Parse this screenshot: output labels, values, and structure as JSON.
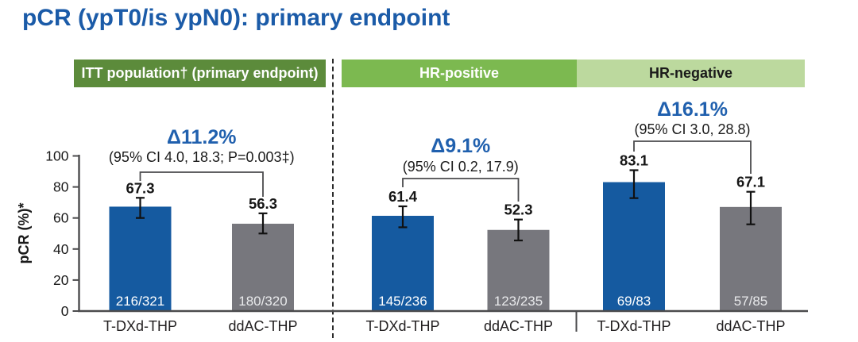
{
  "colors": {
    "title_blue": "#1b5ba8",
    "accent_blue": "#2060ae",
    "bar_blue": "#155aa0",
    "bar_gray": "#77777d",
    "header_dark_green": "#5c8b3b",
    "header_mid_green": "#7cb950",
    "header_light_green": "#bcd99e",
    "header_text_light": "#ffffff",
    "header_text_dark": "#1a1a1a",
    "axis": "#4b4b4d",
    "error_bar": "#111111",
    "fraction_on_blue": "#ffffff",
    "fraction_on_gray": "#e9eaec"
  },
  "chart_data": {
    "type": "bar",
    "title": "pCR (ypT0/is ypN0): primary endpoint",
    "xlabel": "",
    "ylabel": "pCR (%)*",
    "ylim": [
      0,
      100
    ],
    "yticks": [
      0,
      20,
      40,
      60,
      80,
      100
    ],
    "grid": false,
    "legend": "none",
    "panels": [
      {
        "header": "ITT population† (primary endpoint)",
        "delta_label": "Δ11.2%",
        "ci_label": "(95% CI 4.0, 18.3; P=0.003‡)",
        "bars": [
          {
            "label": "T-DXd-THP",
            "value": 67.3,
            "fraction": "216/321",
            "series": "T-DXd-THP",
            "err_low": 60.0,
            "err_high": 73.0
          },
          {
            "label": "ddAC-THP",
            "value": 56.3,
            "fraction": "180/320",
            "series": "ddAC-THP",
            "err_low": 50.0,
            "err_high": 63.0
          }
        ]
      },
      {
        "header": "HR-positive",
        "delta_label": "Δ9.1%",
        "ci_label": "(95% CI 0.2, 17.9)",
        "bars": [
          {
            "label": "T-DXd-THP",
            "value": 61.4,
            "fraction": "145/236",
            "series": "T-DXd-THP",
            "err_low": 54.0,
            "err_high": 67.5
          },
          {
            "label": "ddAC-THP",
            "value": 52.3,
            "fraction": "123/235",
            "series": "ddAC-THP",
            "err_low": 45.5,
            "err_high": 59.0
          }
        ]
      },
      {
        "header": "HR-negative",
        "delta_label": "Δ16.1%",
        "ci_label": "(95% CI 3.0, 28.8)",
        "bars": [
          {
            "label": "T-DXd-THP",
            "value": 83.1,
            "fraction": "69/83",
            "series": "T-DXd-THP",
            "err_low": 72.8,
            "err_high": 90.8
          },
          {
            "label": "ddAC-THP",
            "value": 67.1,
            "fraction": "57/85",
            "series": "ddAC-THP",
            "err_low": 55.9,
            "err_high": 76.9
          }
        ]
      }
    ]
  }
}
